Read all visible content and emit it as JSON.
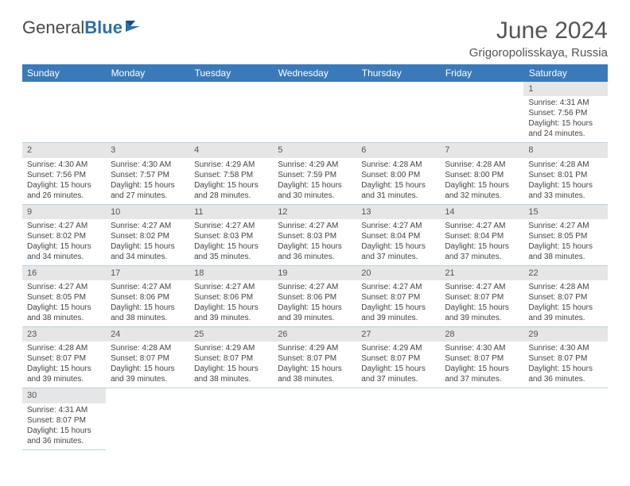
{
  "logo": {
    "text_a": "General",
    "text_b": "Blue"
  },
  "month_title": "June 2024",
  "location": "Grigoropolisskaya, Russia",
  "colors": {
    "header_bg": "#3a7ab8",
    "header_text": "#ffffff",
    "daynum_bg": "#e6e6e6",
    "cell_border": "#b9d2e6",
    "text": "#444444",
    "logo_gray": "#4a4a4a",
    "logo_blue": "#2f6fa7"
  },
  "days_of_week": [
    "Sunday",
    "Monday",
    "Tuesday",
    "Wednesday",
    "Thursday",
    "Friday",
    "Saturday"
  ],
  "weeks": [
    [
      null,
      null,
      null,
      null,
      null,
      null,
      {
        "n": "1",
        "sr": "Sunrise: 4:31 AM",
        "ss": "Sunset: 7:56 PM",
        "d1": "Daylight: 15 hours",
        "d2": "and 24 minutes."
      }
    ],
    [
      {
        "n": "2",
        "sr": "Sunrise: 4:30 AM",
        "ss": "Sunset: 7:56 PM",
        "d1": "Daylight: 15 hours",
        "d2": "and 26 minutes."
      },
      {
        "n": "3",
        "sr": "Sunrise: 4:30 AM",
        "ss": "Sunset: 7:57 PM",
        "d1": "Daylight: 15 hours",
        "d2": "and 27 minutes."
      },
      {
        "n": "4",
        "sr": "Sunrise: 4:29 AM",
        "ss": "Sunset: 7:58 PM",
        "d1": "Daylight: 15 hours",
        "d2": "and 28 minutes."
      },
      {
        "n": "5",
        "sr": "Sunrise: 4:29 AM",
        "ss": "Sunset: 7:59 PM",
        "d1": "Daylight: 15 hours",
        "d2": "and 30 minutes."
      },
      {
        "n": "6",
        "sr": "Sunrise: 4:28 AM",
        "ss": "Sunset: 8:00 PM",
        "d1": "Daylight: 15 hours",
        "d2": "and 31 minutes."
      },
      {
        "n": "7",
        "sr": "Sunrise: 4:28 AM",
        "ss": "Sunset: 8:00 PM",
        "d1": "Daylight: 15 hours",
        "d2": "and 32 minutes."
      },
      {
        "n": "8",
        "sr": "Sunrise: 4:28 AM",
        "ss": "Sunset: 8:01 PM",
        "d1": "Daylight: 15 hours",
        "d2": "and 33 minutes."
      }
    ],
    [
      {
        "n": "9",
        "sr": "Sunrise: 4:27 AM",
        "ss": "Sunset: 8:02 PM",
        "d1": "Daylight: 15 hours",
        "d2": "and 34 minutes."
      },
      {
        "n": "10",
        "sr": "Sunrise: 4:27 AM",
        "ss": "Sunset: 8:02 PM",
        "d1": "Daylight: 15 hours",
        "d2": "and 34 minutes."
      },
      {
        "n": "11",
        "sr": "Sunrise: 4:27 AM",
        "ss": "Sunset: 8:03 PM",
        "d1": "Daylight: 15 hours",
        "d2": "and 35 minutes."
      },
      {
        "n": "12",
        "sr": "Sunrise: 4:27 AM",
        "ss": "Sunset: 8:03 PM",
        "d1": "Daylight: 15 hours",
        "d2": "and 36 minutes."
      },
      {
        "n": "13",
        "sr": "Sunrise: 4:27 AM",
        "ss": "Sunset: 8:04 PM",
        "d1": "Daylight: 15 hours",
        "d2": "and 37 minutes."
      },
      {
        "n": "14",
        "sr": "Sunrise: 4:27 AM",
        "ss": "Sunset: 8:04 PM",
        "d1": "Daylight: 15 hours",
        "d2": "and 37 minutes."
      },
      {
        "n": "15",
        "sr": "Sunrise: 4:27 AM",
        "ss": "Sunset: 8:05 PM",
        "d1": "Daylight: 15 hours",
        "d2": "and 38 minutes."
      }
    ],
    [
      {
        "n": "16",
        "sr": "Sunrise: 4:27 AM",
        "ss": "Sunset: 8:05 PM",
        "d1": "Daylight: 15 hours",
        "d2": "and 38 minutes."
      },
      {
        "n": "17",
        "sr": "Sunrise: 4:27 AM",
        "ss": "Sunset: 8:06 PM",
        "d1": "Daylight: 15 hours",
        "d2": "and 38 minutes."
      },
      {
        "n": "18",
        "sr": "Sunrise: 4:27 AM",
        "ss": "Sunset: 8:06 PM",
        "d1": "Daylight: 15 hours",
        "d2": "and 39 minutes."
      },
      {
        "n": "19",
        "sr": "Sunrise: 4:27 AM",
        "ss": "Sunset: 8:06 PM",
        "d1": "Daylight: 15 hours",
        "d2": "and 39 minutes."
      },
      {
        "n": "20",
        "sr": "Sunrise: 4:27 AM",
        "ss": "Sunset: 8:07 PM",
        "d1": "Daylight: 15 hours",
        "d2": "and 39 minutes."
      },
      {
        "n": "21",
        "sr": "Sunrise: 4:27 AM",
        "ss": "Sunset: 8:07 PM",
        "d1": "Daylight: 15 hours",
        "d2": "and 39 minutes."
      },
      {
        "n": "22",
        "sr": "Sunrise: 4:28 AM",
        "ss": "Sunset: 8:07 PM",
        "d1": "Daylight: 15 hours",
        "d2": "and 39 minutes."
      }
    ],
    [
      {
        "n": "23",
        "sr": "Sunrise: 4:28 AM",
        "ss": "Sunset: 8:07 PM",
        "d1": "Daylight: 15 hours",
        "d2": "and 39 minutes."
      },
      {
        "n": "24",
        "sr": "Sunrise: 4:28 AM",
        "ss": "Sunset: 8:07 PM",
        "d1": "Daylight: 15 hours",
        "d2": "and 39 minutes."
      },
      {
        "n": "25",
        "sr": "Sunrise: 4:29 AM",
        "ss": "Sunset: 8:07 PM",
        "d1": "Daylight: 15 hours",
        "d2": "and 38 minutes."
      },
      {
        "n": "26",
        "sr": "Sunrise: 4:29 AM",
        "ss": "Sunset: 8:07 PM",
        "d1": "Daylight: 15 hours",
        "d2": "and 38 minutes."
      },
      {
        "n": "27",
        "sr": "Sunrise: 4:29 AM",
        "ss": "Sunset: 8:07 PM",
        "d1": "Daylight: 15 hours",
        "d2": "and 37 minutes."
      },
      {
        "n": "28",
        "sr": "Sunrise: 4:30 AM",
        "ss": "Sunset: 8:07 PM",
        "d1": "Daylight: 15 hours",
        "d2": "and 37 minutes."
      },
      {
        "n": "29",
        "sr": "Sunrise: 4:30 AM",
        "ss": "Sunset: 8:07 PM",
        "d1": "Daylight: 15 hours",
        "d2": "and 36 minutes."
      }
    ],
    [
      {
        "n": "30",
        "sr": "Sunrise: 4:31 AM",
        "ss": "Sunset: 8:07 PM",
        "d1": "Daylight: 15 hours",
        "d2": "and 36 minutes."
      },
      null,
      null,
      null,
      null,
      null,
      null
    ]
  ]
}
